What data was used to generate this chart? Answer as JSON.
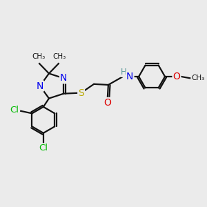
{
  "background_color": "#ebebeb",
  "atom_colors": {
    "C": "#000000",
    "N": "#0000ee",
    "O": "#dd0000",
    "S": "#bbaa00",
    "Cl": "#00bb00",
    "H": "#5a9898"
  },
  "bond_color": "#111111",
  "bond_width": 1.6,
  "font_size": 9,
  "xlim": [
    0,
    12
  ],
  "ylim": [
    0,
    10
  ]
}
